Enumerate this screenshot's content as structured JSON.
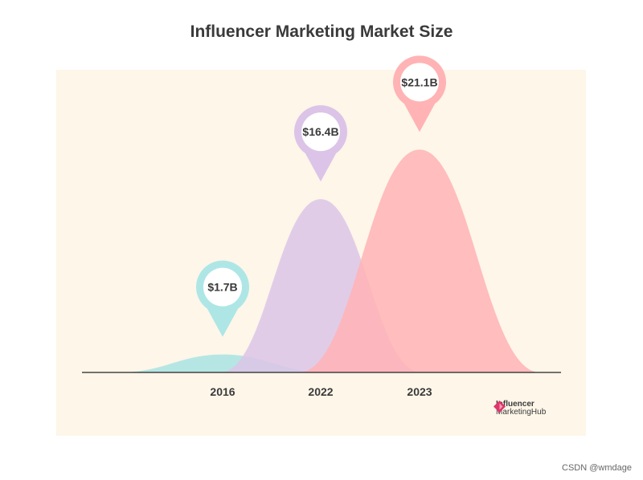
{
  "chart_data": {
    "type": "area",
    "title": "Influencer Marketing Market Size",
    "categories": [
      "2016",
      "2022",
      "2023"
    ],
    "values": [
      1.7,
      16.4,
      21.1
    ],
    "value_labels": [
      "$1.7B",
      "$16.4B",
      "$21.1B"
    ],
    "colors": [
      "#a9e3e3",
      "#dcc4e8",
      "#ffb3b5"
    ],
    "pin_colors": [
      "#aee6e6",
      "#dcc4e8",
      "#ffb3b5"
    ],
    "ylim": [
      0,
      25
    ]
  },
  "brand": {
    "line1": "Influencer",
    "line2": "MarketingHub"
  },
  "watermark": "CSDN @wmdage"
}
